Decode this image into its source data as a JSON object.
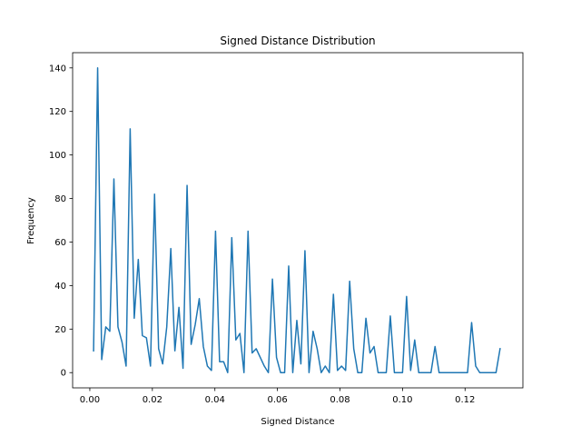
{
  "chart_data": {
    "type": "line",
    "title": "Signed Distance Distribution",
    "xlabel": "Signed Distance",
    "ylabel": "Frequency",
    "xlim": [
      -0.0055,
      0.1385
    ],
    "ylim": [
      -7,
      147
    ],
    "xticks": [
      0.0,
      0.02,
      0.04,
      0.06,
      0.08,
      0.1,
      0.12
    ],
    "xtick_labels": [
      "0.00",
      "0.02",
      "0.04",
      "0.06",
      "0.08",
      "0.10",
      "0.12"
    ],
    "yticks": [
      0,
      20,
      40,
      60,
      80,
      100,
      120,
      140
    ],
    "ytick_labels": [
      "0",
      "20",
      "40",
      "60",
      "80",
      "100",
      "120",
      "140"
    ],
    "grid": false,
    "line_color": "#1f77b4",
    "series": [
      {
        "x": [
          0.0012,
          0.0025,
          0.0038,
          0.0051,
          0.0064,
          0.0077,
          0.009,
          0.0103,
          0.0116,
          0.0129,
          0.0142,
          0.0155,
          0.0168,
          0.0181,
          0.0194,
          0.0207,
          0.022,
          0.0233,
          0.0246,
          0.0259,
          0.0272,
          0.0285,
          0.0298,
          0.0311,
          0.0324,
          0.0337,
          0.035,
          0.0363,
          0.0376,
          0.0389,
          0.0402,
          0.0415,
          0.0428,
          0.0441,
          0.0454,
          0.0467,
          0.048,
          0.0493,
          0.0506,
          0.0519,
          0.0532,
          0.0545,
          0.0558,
          0.0571,
          0.0584,
          0.0597,
          0.061,
          0.0623,
          0.0636,
          0.0649,
          0.0662,
          0.0675,
          0.0688,
          0.0701,
          0.0714,
          0.0727,
          0.074,
          0.0753,
          0.0766,
          0.0779,
          0.0792,
          0.0805,
          0.0818,
          0.0831,
          0.0844,
          0.0857,
          0.087,
          0.0883,
          0.0896,
          0.0909,
          0.0922,
          0.0935,
          0.0948,
          0.0961,
          0.0974,
          0.0987,
          0.1,
          0.1013,
          0.1026,
          0.1039,
          0.1052,
          0.1065,
          0.1078,
          0.1091,
          0.1104,
          0.1117,
          0.113,
          0.1143,
          0.1156,
          0.1169,
          0.1182,
          0.1195,
          0.1208,
          0.1221,
          0.1234,
          0.1247,
          0.126,
          0.1273,
          0.1286,
          0.1299,
          0.1312
        ],
        "y": [
          10,
          140,
          6,
          21,
          19,
          89,
          21,
          14,
          3,
          112,
          25,
          52,
          17,
          16,
          3,
          82,
          11,
          4,
          21,
          57,
          10,
          30,
          2,
          86,
          13,
          22,
          34,
          12,
          3,
          1,
          65,
          5,
          5,
          0,
          62,
          15,
          18,
          0,
          65,
          9,
          11,
          7,
          3,
          0,
          43,
          7,
          0,
          0,
          49,
          0,
          24,
          4,
          56,
          0,
          19,
          11,
          0,
          3,
          0,
          36,
          1,
          3,
          1,
          42,
          11,
          0,
          0,
          25,
          9,
          12,
          0,
          0,
          0,
          26,
          0,
          0,
          0,
          35,
          1,
          15,
          0,
          0,
          0,
          0,
          12,
          0,
          0,
          0,
          0,
          0,
          0,
          0,
          0,
          23,
          3,
          0,
          0,
          0,
          0,
          0,
          11
        ]
      }
    ]
  }
}
